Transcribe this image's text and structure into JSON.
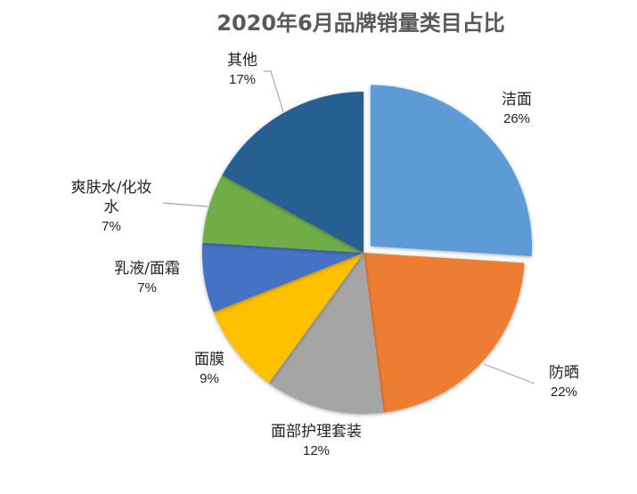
{
  "chart_data": {
    "type": "pie",
    "title": "2020年6月品牌销量类目占比",
    "categories": [
      "洁面",
      "防晒",
      "面部护理套装",
      "面膜",
      "乳液/面霜",
      "爽肤水/化妆水",
      "其他"
    ],
    "values": [
      26,
      22,
      12,
      9,
      7,
      7,
      17
    ],
    "value_labels": [
      "26%",
      "22%",
      "12%",
      "9%",
      "7%",
      "7%",
      "17%"
    ],
    "unit": "%",
    "colors": [
      "#5B9BD5",
      "#ED7D31",
      "#A5A5A5",
      "#FFC000",
      "#4472C4",
      "#70AD47",
      "#255E91"
    ],
    "start_angle_deg": 0,
    "direction": "clockwise",
    "exploded": [
      "洁面"
    ],
    "legend": "none",
    "data_labels": "category name and percentage, outside with leader lines"
  },
  "labels": {
    "jiemian": {
      "name": "洁面",
      "pct": "26%"
    },
    "fangshai": {
      "name": "防晒",
      "pct": "22%"
    },
    "taozhuang": {
      "name": "面部护理套装",
      "pct": "12%"
    },
    "mianmo": {
      "name": "面膜",
      "pct": "9%"
    },
    "ruye": {
      "name": "乳液/面霜",
      "pct": "7%"
    },
    "shuangfushui_line1": "爽肤水/化妆",
    "shuangfushui_line2": "水",
    "shuangfushui_pct": "7%",
    "qita": {
      "name": "其他",
      "pct": "17%"
    }
  }
}
